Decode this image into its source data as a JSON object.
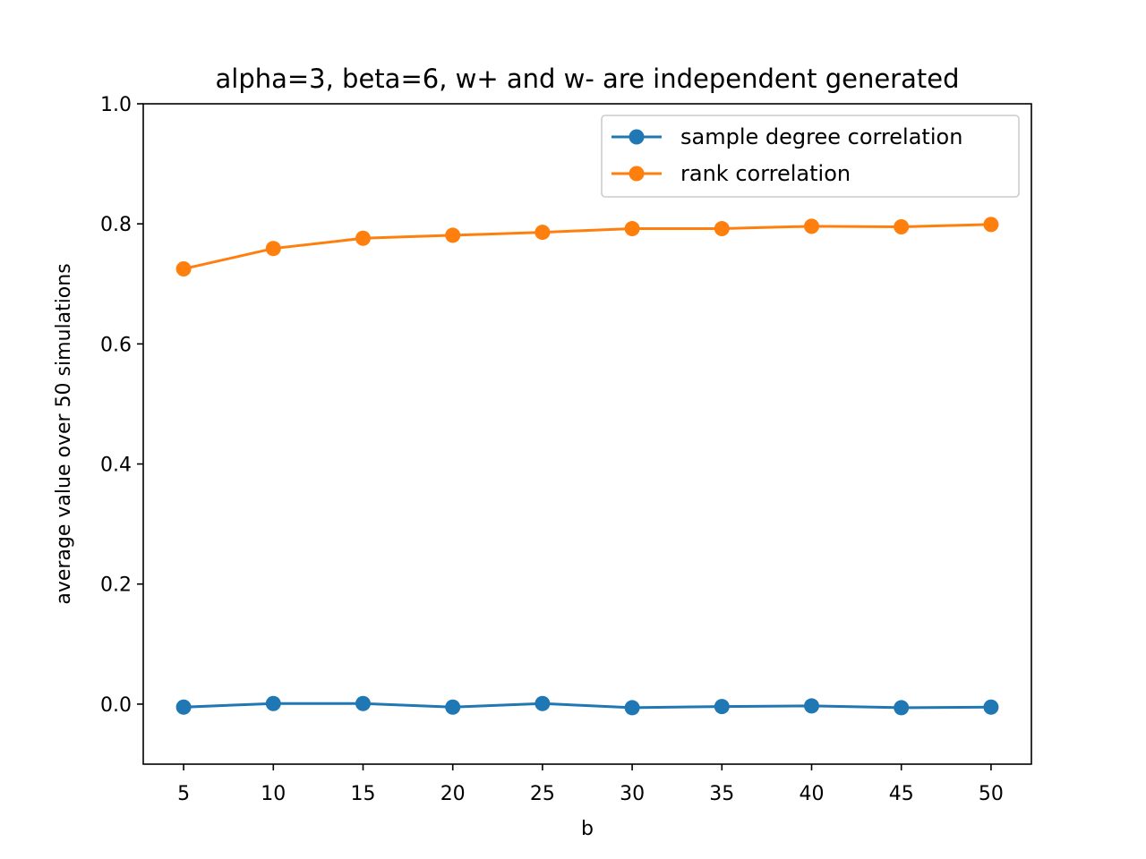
{
  "chart_data": {
    "type": "line",
    "title": "alpha=3, beta=6, w+ and w- are independent generated",
    "xlabel": "b",
    "ylabel": "average value over 50 simulations",
    "x": [
      5,
      10,
      15,
      20,
      25,
      30,
      35,
      40,
      45,
      50
    ],
    "x_ticks": [
      5,
      10,
      15,
      20,
      25,
      30,
      35,
      40,
      45,
      50
    ],
    "y_ticks": [
      0.0,
      0.2,
      0.4,
      0.6,
      0.8,
      1.0
    ],
    "y_tick_labels": [
      "0.0",
      "0.2",
      "0.4",
      "0.6",
      "0.8",
      "1.0"
    ],
    "xlim": [
      2.75,
      52.25
    ],
    "ylim": [
      -0.1,
      1.0
    ],
    "grid": false,
    "legend_position": "top-right",
    "series": [
      {
        "name": "sample degree correlation",
        "color": "#1f77b4",
        "marker": "circle",
        "values": [
          -0.005,
          0.001,
          0.001,
          -0.005,
          0.001,
          -0.006,
          -0.004,
          -0.003,
          -0.006,
          -0.005
        ]
      },
      {
        "name": "rank correlation",
        "color": "#ff7f0e",
        "marker": "circle",
        "values": [
          0.725,
          0.759,
          0.776,
          0.781,
          0.786,
          0.792,
          0.792,
          0.796,
          0.795,
          0.799
        ]
      }
    ]
  }
}
